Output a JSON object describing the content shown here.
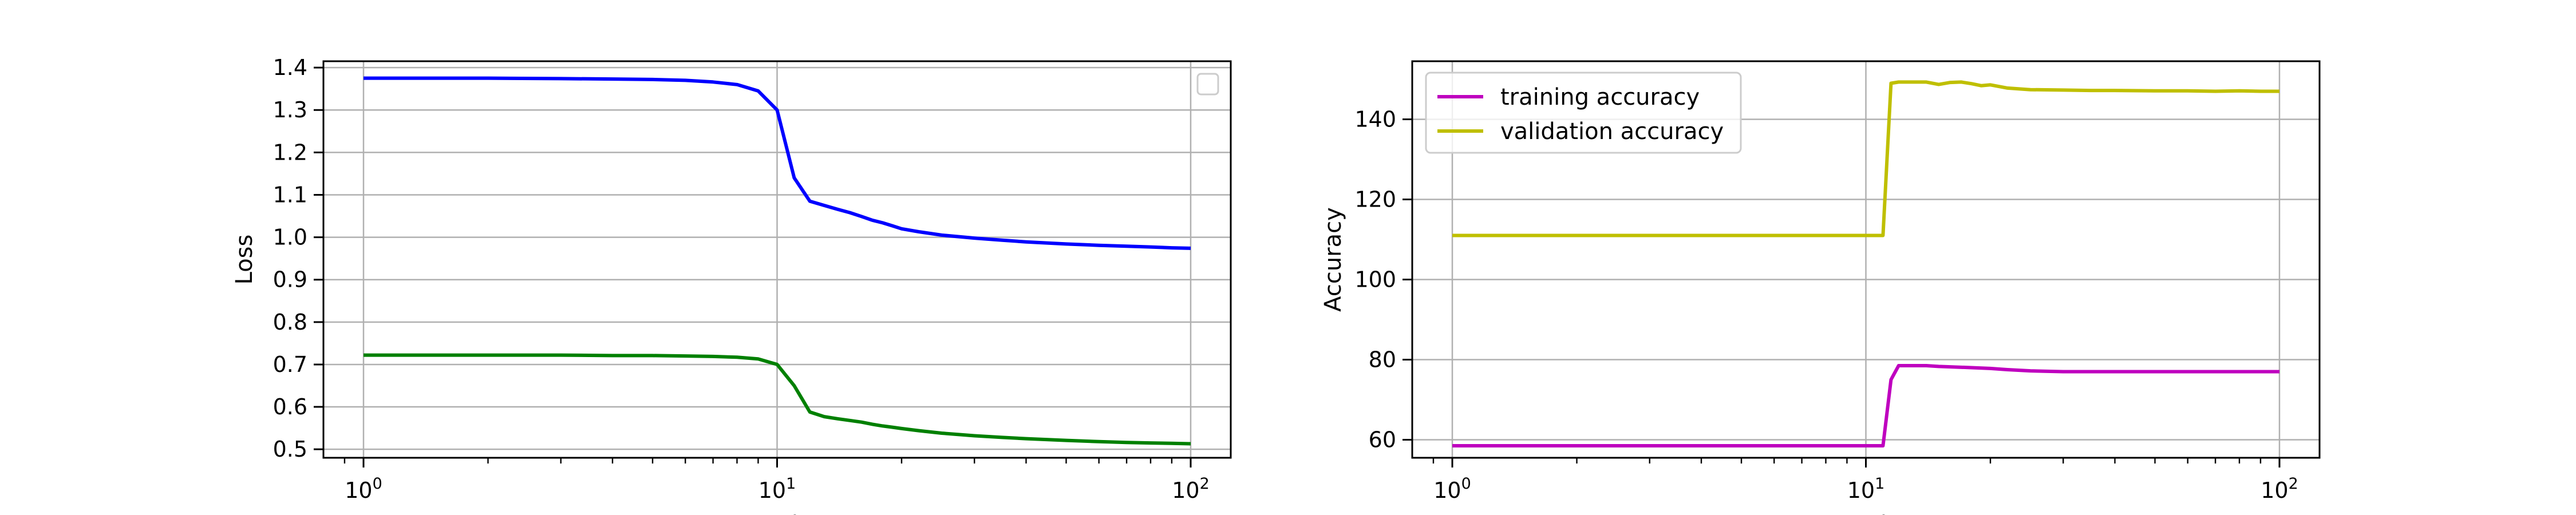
{
  "chart_data": [
    {
      "type": "line",
      "xlabel": "Epochs",
      "ylabel": "Loss",
      "xscale": "log",
      "xlim": [
        0.8,
        125
      ],
      "ylim": [
        0.48,
        1.415
      ],
      "xticks": [
        1,
        10,
        100
      ],
      "xtick_labels": [
        {
          "base": "10",
          "exp": "0"
        },
        {
          "base": "10",
          "exp": "1"
        },
        {
          "base": "10",
          "exp": "2"
        }
      ],
      "yticks": [
        0.5,
        0.6,
        0.7,
        0.8,
        0.9,
        1.0,
        1.1,
        1.2,
        1.3,
        1.4
      ],
      "ytick_labels": [
        "0.5",
        "0.6",
        "0.7",
        "0.8",
        "0.9",
        "1.0",
        "1.1",
        "1.2",
        "1.3",
        "1.4"
      ],
      "grid": true,
      "legend": {
        "placement": "top-right",
        "entries": []
      },
      "series": [
        {
          "color": "#0000ff",
          "x": [
            1,
            2,
            3,
            4,
            5,
            6,
            7,
            8,
            9,
            10,
            11,
            12,
            13,
            14,
            15,
            16,
            17,
            18,
            19,
            20,
            22,
            25,
            30,
            35,
            40,
            50,
            60,
            70,
            80,
            90,
            100
          ],
          "y": [
            1.375,
            1.375,
            1.374,
            1.373,
            1.372,
            1.37,
            1.366,
            1.36,
            1.345,
            1.3,
            1.14,
            1.085,
            1.075,
            1.066,
            1.058,
            1.049,
            1.04,
            1.034,
            1.027,
            1.02,
            1.013,
            1.005,
            0.998,
            0.993,
            0.989,
            0.984,
            0.981,
            0.979,
            0.977,
            0.975,
            0.974
          ]
        },
        {
          "color": "#008000",
          "x": [
            1,
            2,
            3,
            4,
            5,
            6,
            7,
            8,
            9,
            10,
            11,
            12,
            13,
            14,
            15,
            16,
            17,
            18,
            19,
            20,
            22,
            25,
            30,
            35,
            40,
            50,
            60,
            70,
            80,
            90,
            100
          ],
          "y": [
            0.722,
            0.722,
            0.722,
            0.721,
            0.721,
            0.72,
            0.719,
            0.717,
            0.713,
            0.7,
            0.65,
            0.588,
            0.577,
            0.572,
            0.568,
            0.564,
            0.559,
            0.555,
            0.552,
            0.549,
            0.544,
            0.538,
            0.532,
            0.528,
            0.525,
            0.521,
            0.518,
            0.516,
            0.515,
            0.514,
            0.513
          ]
        }
      ]
    },
    {
      "type": "line",
      "xlabel": "Epochs",
      "ylabel": "Accuracy",
      "xscale": "log",
      "xlim": [
        0.8,
        125
      ],
      "ylim": [
        55.5,
        154.5
      ],
      "xticks": [
        1,
        10,
        100
      ],
      "xtick_labels": [
        {
          "base": "10",
          "exp": "0"
        },
        {
          "base": "10",
          "exp": "1"
        },
        {
          "base": "10",
          "exp": "2"
        }
      ],
      "yticks": [
        60,
        80,
        100,
        120,
        140
      ],
      "ytick_labels": [
        "60",
        "80",
        "100",
        "120",
        "140"
      ],
      "grid": true,
      "legend": {
        "placement": "top-left",
        "entries": [
          {
            "label": "training accuracy",
            "color": "#bf00bf"
          },
          {
            "label": "validation accuracy",
            "color": "#bfbf00"
          }
        ]
      },
      "series": [
        {
          "name": "training accuracy",
          "color": "#bf00bf",
          "x": [
            1,
            2,
            3,
            4,
            5,
            6,
            7,
            8,
            9,
            10,
            11,
            11.5,
            12,
            13,
            14,
            15,
            16,
            18,
            20,
            22,
            25,
            30,
            35,
            40,
            50,
            60,
            70,
            80,
            90,
            100
          ],
          "y": [
            58.5,
            58.5,
            58.5,
            58.5,
            58.5,
            58.5,
            58.5,
            58.5,
            58.5,
            58.5,
            58.5,
            75,
            78.5,
            78.5,
            78.5,
            78.3,
            78.2,
            78.0,
            77.8,
            77.5,
            77.2,
            77.0,
            77.0,
            77.0,
            77.0,
            77.0,
            77.0,
            77.0,
            77.0,
            77.0
          ]
        },
        {
          "name": "validation accuracy",
          "color": "#bfbf00",
          "x": [
            1,
            2,
            3,
            4,
            5,
            6,
            7,
            8,
            9,
            10,
            11,
            11.5,
            12,
            13,
            14,
            15,
            16,
            17,
            18,
            19,
            20,
            22,
            25,
            30,
            35,
            40,
            50,
            60,
            70,
            80,
            90,
            100
          ],
          "y": [
            111,
            111,
            111,
            111,
            111,
            111,
            111,
            111,
            111,
            111,
            111,
            149,
            149.3,
            149.3,
            149.3,
            148.7,
            149.2,
            149.3,
            148.9,
            148.4,
            148.6,
            147.8,
            147.4,
            147.3,
            147.2,
            147.2,
            147.1,
            147.1,
            147.0,
            147.1,
            147.0,
            147.0
          ]
        }
      ]
    }
  ]
}
